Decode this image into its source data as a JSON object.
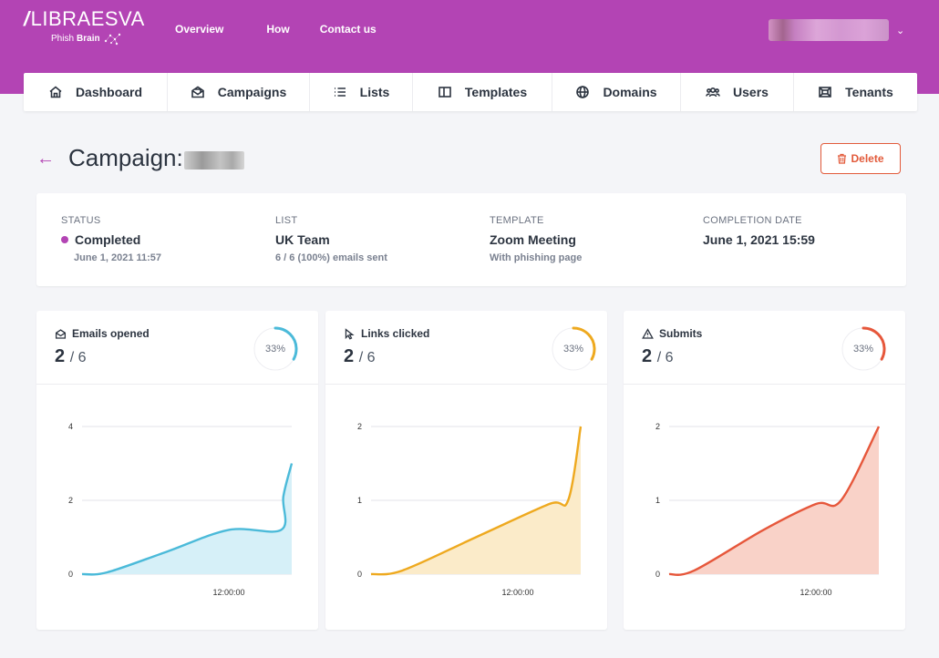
{
  "brand": {
    "logo_slash": "/",
    "logo_main": "LIBRAESVA",
    "logo_sub_a": "Phish",
    "logo_sub_b": "Brain"
  },
  "top_nav": [
    "Overview",
    "How",
    "Contact us"
  ],
  "tabs": [
    {
      "label": "Dashboard",
      "icon": "home-icon"
    },
    {
      "label": "Campaigns",
      "icon": "mail-open-icon"
    },
    {
      "label": "Lists",
      "icon": "list-icon"
    },
    {
      "label": "Templates",
      "icon": "columns-icon"
    },
    {
      "label": "Domains",
      "icon": "globe-icon"
    },
    {
      "label": "Users",
      "icon": "users-icon"
    },
    {
      "label": "Tenants",
      "icon": "tenants-icon"
    }
  ],
  "page": {
    "back": "←",
    "title": "Campaign:",
    "delete_label": "Delete"
  },
  "info": {
    "status": {
      "label": "STATUS",
      "value": "Completed",
      "sub": "June 1, 2021 11:57"
    },
    "list": {
      "label": "LIST",
      "value": "UK Team",
      "sub": "6 / 6 (100%) emails sent"
    },
    "template": {
      "label": "TEMPLATE",
      "value": "Zoom Meeting",
      "sub": "With phishing page"
    },
    "completion": {
      "label": "COMPLETION DATE",
      "value": "June 1, 2021 15:59"
    }
  },
  "stats": [
    {
      "title": "Emails opened",
      "icon": "mail-open-icon",
      "value": "2",
      "total": "/ 6",
      "percent": "33%",
      "fraction": 0.33,
      "color": "#4bbad9",
      "fill": "#d6f0f8"
    },
    {
      "title": "Links clicked",
      "icon": "cursor-icon",
      "value": "2",
      "total": "/ 6",
      "percent": "33%",
      "fraction": 0.33,
      "color": "#eea91f",
      "fill": "#fbebc9"
    },
    {
      "title": "Submits",
      "icon": "warning-icon",
      "value": "2",
      "total": "/ 6",
      "percent": "33%",
      "fraction": 0.33,
      "color": "#e6573b",
      "fill": "#f9d2c8"
    }
  ],
  "chart_data": [
    {
      "type": "area",
      "ylim": [
        0,
        4
      ],
      "yticks": [
        "0",
        "2",
        "4"
      ],
      "xtick": "12:00:00",
      "x": [
        0,
        0.12,
        0.4,
        0.7,
        0.95,
        0.96,
        1.0
      ],
      "y": [
        0,
        0.05,
        0.6,
        1.2,
        1.2,
        2.1,
        3.0
      ]
    },
    {
      "type": "area",
      "ylim": [
        0,
        2
      ],
      "yticks": [
        "0",
        "1",
        "2"
      ],
      "xtick": "12:00:00",
      "x": [
        0,
        0.15,
        0.5,
        0.85,
        0.94,
        1.0
      ],
      "y": [
        0,
        0.05,
        0.5,
        0.95,
        1.0,
        2.0
      ]
    },
    {
      "type": "area",
      "ylim": [
        0,
        2
      ],
      "yticks": [
        "0",
        "1",
        "2"
      ],
      "xtick": "12:00:00",
      "x": [
        0,
        0.12,
        0.45,
        0.7,
        0.82,
        1.0
      ],
      "y": [
        0,
        0.05,
        0.6,
        0.95,
        1.0,
        2.0
      ]
    }
  ]
}
